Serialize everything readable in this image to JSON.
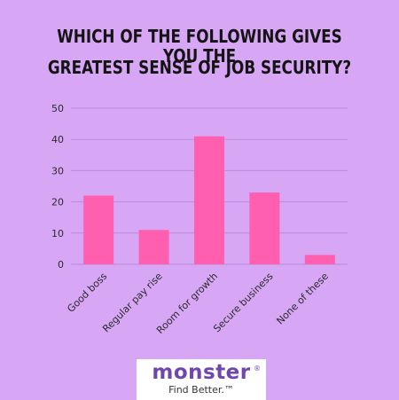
{
  "colors": {
    "background": "#d7a6f5",
    "bar": "#ff5fae",
    "gridline": "#b98bd9",
    "axis_text": "#2b2b2b",
    "logo_purple": "#6e46ae"
  },
  "chart_data": {
    "type": "bar",
    "title": "WHICH OF THE FOLLOWING GIVES YOU THE GREATEST SENSE OF JOB SECURITY?",
    "title_lines": [
      "WHICH OF THE FOLLOWING GIVES YOU THE",
      "GREATEST SENSE OF JOB SECURITY?"
    ],
    "categories": [
      "Good boss",
      "Regular pay rise",
      "Room for growth",
      "Secure business",
      "None of these"
    ],
    "values": [
      22,
      11,
      41,
      23,
      3
    ],
    "xlabel": "",
    "ylabel": "",
    "ylim": [
      0,
      50
    ],
    "yticks": [
      0,
      10,
      20,
      30,
      40,
      50
    ],
    "grid": true,
    "legend": "none"
  },
  "logo": {
    "word": "monster",
    "registered": "®",
    "tagline": "Find Better.™"
  }
}
